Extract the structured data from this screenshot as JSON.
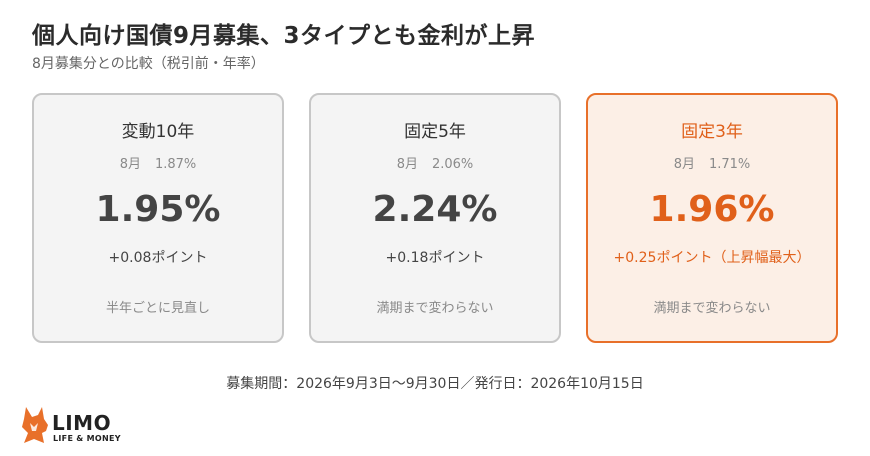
{
  "header": {
    "title": "個人向け国債9月募集、3タイプとも金利が上昇",
    "subtitle": "8月募集分との比較（税引前・年率）"
  },
  "cards": [
    {
      "name": "変動10年",
      "prev_label": "8月",
      "prev_rate": "1.87%",
      "rate": "1.95%",
      "diff": "+0.08ポイント",
      "note": "半年ごとに見直し",
      "highlight": false
    },
    {
      "name": "固定5年",
      "prev_label": "8月",
      "prev_rate": "2.06%",
      "rate": "2.24%",
      "diff": "+0.18ポイント",
      "note": "満期まで変わらない",
      "highlight": false
    },
    {
      "name": "固定3年",
      "prev_label": "8月",
      "prev_rate": "1.71%",
      "rate": "1.96%",
      "diff": "+0.25ポイント（上昇幅最大）",
      "note": "満期まで変わらない",
      "highlight": true
    }
  ],
  "footer": {
    "period": "募集期間：2026年9月3日〜9月30日／発行日：2026年10月15日"
  },
  "logo": {
    "word": "LIMO",
    "tagline": "LIFE & MONEY",
    "icon": "fox-logo-icon"
  },
  "colors": {
    "accent": "#e8702a",
    "accent_text": "#e0601a",
    "accent_bg": "#fcefe6",
    "card_bg": "#f4f4f4",
    "card_border": "#c7c7c7"
  }
}
